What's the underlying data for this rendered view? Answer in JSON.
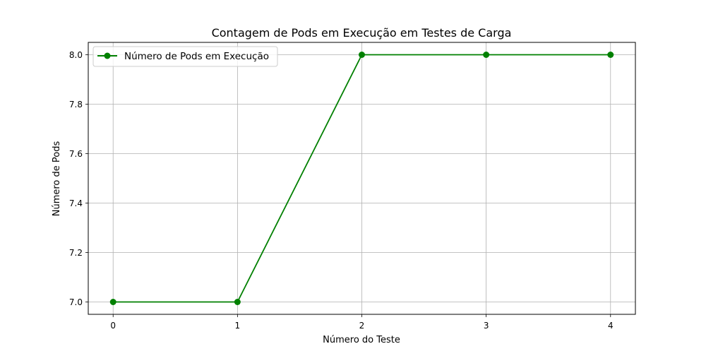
{
  "chart_data": {
    "type": "line",
    "title": "Contagem de Pods em Execução em Testes de Carga",
    "xlabel": "Número do Teste",
    "ylabel": "Número de Pods",
    "x": [
      0,
      1,
      2,
      3,
      4
    ],
    "x_ticks": [
      "0",
      "1",
      "2",
      "3",
      "4"
    ],
    "y_ticks": [
      "7.0",
      "7.2",
      "7.4",
      "7.6",
      "7.8",
      "8.0"
    ],
    "xlim": [
      -0.2,
      4.2
    ],
    "ylim": [
      6.95,
      8.05
    ],
    "grid": true,
    "legend_position": "upper-left",
    "series": [
      {
        "name": "Número de Pods em Execução",
        "values": [
          7,
          7,
          8,
          8,
          8
        ],
        "color": "#008000",
        "marker": "circle"
      }
    ]
  }
}
